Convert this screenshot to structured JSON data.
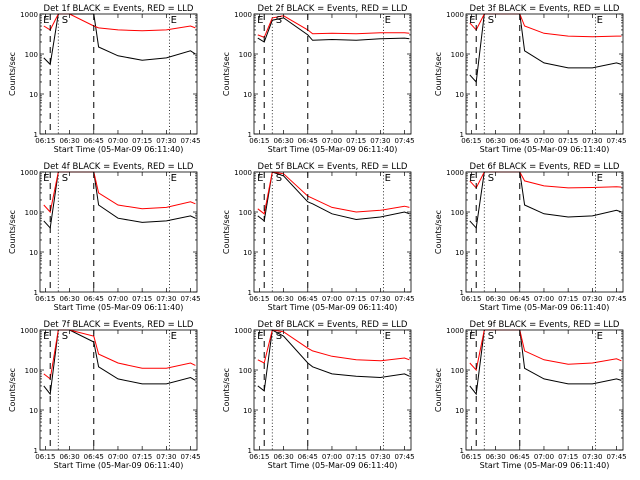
{
  "figure": {
    "xlabel": "Start Time (05-Mar-09 06:11:40)",
    "ylabel": "Counts/sec",
    "xtick_labels": [
      "06:15",
      "06:30",
      "06:45",
      "07:00",
      "07:15",
      "07:30",
      "07:45"
    ],
    "ytick_labels": [
      "1",
      "10",
      "100",
      "1000"
    ],
    "markers": [
      "E",
      "S",
      "E"
    ],
    "colors": {
      "events": "#000000",
      "lld": "#ff0000"
    }
  },
  "chart_data": [
    {
      "type": "line",
      "title": "Det 1f BLACK = Events, RED = LLD",
      "xlim": [
        "06:11:40",
        "07:49:00"
      ],
      "ylim": [
        1,
        1000
      ],
      "yscale": "log",
      "x": [
        "06:14",
        "06:18",
        "06:23",
        "06:30",
        "06:45",
        "06:48",
        "07:00",
        "07:15",
        "07:30",
        "07:45",
        "07:48"
      ],
      "series": [
        {
          "name": "BLACK = Events",
          "values": [
            80,
            55,
            1000,
            1000,
            1000,
            150,
            90,
            70,
            80,
            120,
            100
          ]
        },
        {
          "name": "RED = LLD",
          "values": [
            500,
            400,
            1000,
            1000,
            500,
            450,
            400,
            380,
            400,
            500,
            450
          ]
        }
      ]
    },
    {
      "type": "line",
      "title": "Det 2f BLACK = Events, RED = LLD",
      "xlim": [
        "06:11:40",
        "07:49:00"
      ],
      "ylim": [
        1,
        1000
      ],
      "yscale": "log",
      "x": [
        "06:14",
        "06:18",
        "06:23",
        "06:30",
        "06:45",
        "06:48",
        "07:00",
        "07:15",
        "07:30",
        "07:45",
        "07:48"
      ],
      "series": [
        {
          "name": "BLACK = Events",
          "values": [
            250,
            200,
            700,
            800,
            300,
            220,
            230,
            220,
            240,
            250,
            240
          ]
        },
        {
          "name": "RED = LLD",
          "values": [
            300,
            260,
            800,
            900,
            400,
            320,
            330,
            320,
            340,
            340,
            330
          ]
        }
      ]
    },
    {
      "type": "line",
      "title": "Det 3f BLACK = Events, RED = LLD",
      "xlim": [
        "06:11:40",
        "07:49:00"
      ],
      "ylim": [
        1,
        1000
      ],
      "yscale": "log",
      "x": [
        "06:14",
        "06:18",
        "06:23",
        "06:30",
        "06:45",
        "06:48",
        "07:00",
        "07:15",
        "07:30",
        "07:45",
        "07:48"
      ],
      "series": [
        {
          "name": "BLACK = Events",
          "values": [
            30,
            20,
            1000,
            1000,
            1000,
            120,
            60,
            45,
            45,
            60,
            55
          ]
        },
        {
          "name": "RED = LLD",
          "values": [
            600,
            400,
            1000,
            1000,
            1000,
            500,
            330,
            280,
            270,
            280,
            280
          ]
        }
      ]
    },
    {
      "type": "line",
      "title": "Det 4f BLACK = Events, RED = LLD",
      "xlim": [
        "06:11:40",
        "07:49:00"
      ],
      "ylim": [
        1,
        1000
      ],
      "yscale": "log",
      "x": [
        "06:14",
        "06:18",
        "06:23",
        "06:30",
        "06:45",
        "06:48",
        "07:00",
        "07:15",
        "07:30",
        "07:45",
        "07:48"
      ],
      "series": [
        {
          "name": "BLACK = Events",
          "values": [
            60,
            40,
            1000,
            1000,
            1000,
            150,
            70,
            55,
            60,
            80,
            70
          ]
        },
        {
          "name": "RED = LLD",
          "values": [
            150,
            100,
            1000,
            1000,
            1000,
            300,
            150,
            120,
            130,
            180,
            160
          ]
        }
      ]
    },
    {
      "type": "line",
      "title": "Det 5f BLACK = Events, RED = LLD",
      "xlim": [
        "06:11:40",
        "07:49:00"
      ],
      "ylim": [
        1,
        1000
      ],
      "yscale": "log",
      "x": [
        "06:14",
        "06:18",
        "06:23",
        "06:30",
        "06:45",
        "06:48",
        "07:00",
        "07:15",
        "07:30",
        "07:45",
        "07:48"
      ],
      "series": [
        {
          "name": "BLACK = Events",
          "values": [
            80,
            60,
            1000,
            800,
            180,
            160,
            90,
            65,
            75,
            100,
            90
          ]
        },
        {
          "name": "RED = LLD",
          "values": [
            120,
            90,
            1000,
            900,
            250,
            220,
            130,
            100,
            110,
            140,
            130
          ]
        }
      ]
    },
    {
      "type": "line",
      "title": "Det 6f BLACK = Events, RED = LLD",
      "xlim": [
        "06:11:40",
        "07:49:00"
      ],
      "ylim": [
        1,
        1000
      ],
      "yscale": "log",
      "x": [
        "06:14",
        "06:18",
        "06:23",
        "06:30",
        "06:45",
        "06:48",
        "07:00",
        "07:15",
        "07:30",
        "07:45",
        "07:48"
      ],
      "series": [
        {
          "name": "BLACK = Events",
          "values": [
            60,
            40,
            1000,
            1000,
            1000,
            150,
            90,
            75,
            80,
            110,
            100
          ]
        },
        {
          "name": "RED = LLD",
          "values": [
            600,
            400,
            1000,
            1000,
            1000,
            600,
            450,
            400,
            410,
            430,
            420
          ]
        }
      ]
    },
    {
      "type": "line",
      "title": "Det 7f BLACK = Events, RED = LLD",
      "xlim": [
        "06:11:40",
        "07:49:00"
      ],
      "ylim": [
        1,
        1000
      ],
      "yscale": "log",
      "x": [
        "06:14",
        "06:18",
        "06:23",
        "06:30",
        "06:45",
        "06:48",
        "07:00",
        "07:15",
        "07:30",
        "07:45",
        "07:48"
      ],
      "series": [
        {
          "name": "BLACK = Events",
          "values": [
            40,
            25,
            1000,
            1000,
            500,
            120,
            60,
            45,
            45,
            65,
            55
          ]
        },
        {
          "name": "RED = LLD",
          "values": [
            80,
            60,
            1000,
            1000,
            700,
            250,
            150,
            110,
            110,
            150,
            130
          ]
        }
      ]
    },
    {
      "type": "line",
      "title": "Det 8f BLACK = Events, RED = LLD",
      "xlim": [
        "06:11:40",
        "07:49:00"
      ],
      "ylim": [
        1,
        1000
      ],
      "yscale": "log",
      "x": [
        "06:14",
        "06:18",
        "06:23",
        "06:30",
        "06:45",
        "06:48",
        "07:00",
        "07:15",
        "07:30",
        "07:45",
        "07:48"
      ],
      "series": [
        {
          "name": "BLACK = Events",
          "values": [
            40,
            30,
            1000,
            700,
            150,
            120,
            80,
            70,
            65,
            80,
            70
          ]
        },
        {
          "name": "RED = LLD",
          "values": [
            180,
            150,
            1000,
            900,
            350,
            300,
            220,
            180,
            170,
            200,
            180
          ]
        }
      ]
    },
    {
      "type": "line",
      "title": "Det 9f BLACK = Events, RED = LLD",
      "xlim": [
        "06:11:40",
        "07:49:00"
      ],
      "ylim": [
        1,
        1000
      ],
      "yscale": "log",
      "x": [
        "06:14",
        "06:18",
        "06:23",
        "06:30",
        "06:45",
        "06:48",
        "07:00",
        "07:15",
        "07:30",
        "07:45",
        "07:48"
      ],
      "series": [
        {
          "name": "BLACK = Events",
          "values": [
            40,
            25,
            1000,
            1000,
            1000,
            110,
            60,
            45,
            45,
            60,
            55
          ]
        },
        {
          "name": "RED = LLD",
          "values": [
            150,
            100,
            1000,
            1000,
            1000,
            300,
            180,
            140,
            150,
            190,
            170
          ]
        }
      ]
    }
  ]
}
